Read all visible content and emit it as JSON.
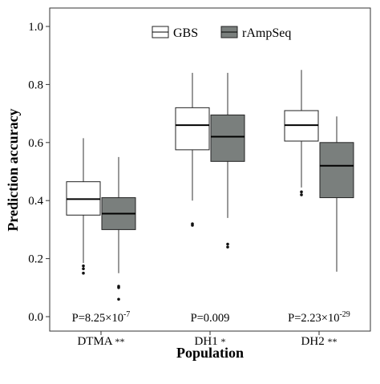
{
  "chart_data": {
    "type": "box",
    "xlabel": "Population",
    "ylabel": "Prediction accuracy",
    "ylim": [
      0.0,
      1.0
    ],
    "yticks": [
      "0.0",
      "0.2",
      "0.4",
      "0.6",
      "0.8",
      "1.0"
    ],
    "ytick_values": [
      0.0,
      0.2,
      0.4,
      0.6,
      0.8,
      1.0
    ],
    "grid": false,
    "legend_position": "top-right",
    "categories": [
      {
        "name": "DTMA",
        "sig": "**",
        "pvalue": "P=8.25×10",
        "pvalue_exp": "-7"
      },
      {
        "name": "DH1",
        "sig": "*",
        "pvalue": "P=0.009",
        "pvalue_exp": ""
      },
      {
        "name": "DH2",
        "sig": "**",
        "pvalue": "P=2.23×10",
        "pvalue_exp": "-29"
      }
    ],
    "series": [
      {
        "name": "GBS",
        "fill": "#ffffff",
        "boxes": [
          {
            "whisker_low": 0.185,
            "q1": 0.35,
            "median": 0.405,
            "q3": 0.465,
            "whisker_high": 0.615,
            "outliers": [
              0.175,
              0.165,
              0.15
            ]
          },
          {
            "whisker_low": 0.4,
            "q1": 0.575,
            "median": 0.66,
            "q3": 0.72,
            "whisker_high": 0.84,
            "outliers": [
              0.32,
              0.315
            ]
          },
          {
            "whisker_low": 0.445,
            "q1": 0.605,
            "median": 0.66,
            "q3": 0.71,
            "whisker_high": 0.85,
            "outliers": [
              0.43,
              0.42
            ]
          }
        ]
      },
      {
        "name": "rAmpSeq",
        "fill": "#7a7f7d",
        "boxes": [
          {
            "whisker_low": 0.15,
            "q1": 0.3,
            "median": 0.355,
            "q3": 0.41,
            "whisker_high": 0.55,
            "outliers": [
              0.105,
              0.1,
              0.06
            ]
          },
          {
            "whisker_low": 0.34,
            "q1": 0.535,
            "median": 0.62,
            "q3": 0.695,
            "whisker_high": 0.84,
            "outliers": [
              0.25,
              0.24
            ]
          },
          {
            "whisker_low": 0.155,
            "q1": 0.41,
            "median": 0.52,
            "q3": 0.6,
            "whisker_high": 0.69,
            "outliers": []
          }
        ]
      }
    ]
  }
}
